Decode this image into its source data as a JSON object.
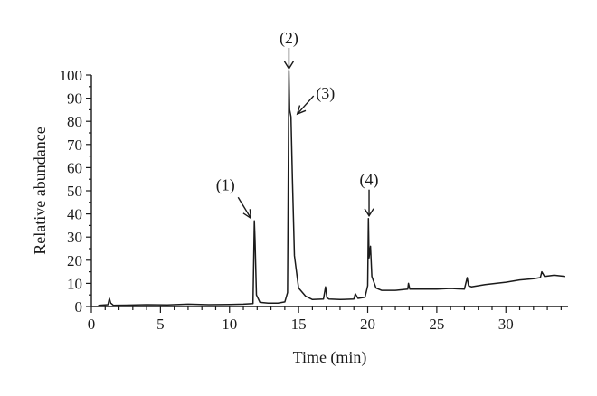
{
  "chart_data": {
    "type": "line",
    "title": "",
    "xlabel": "Time (min)",
    "ylabel": "Relative abundance",
    "xlim": [
      0,
      34.5
    ],
    "ylim": [
      0,
      100
    ],
    "xticks": [
      0,
      5,
      10,
      15,
      20,
      25,
      30
    ],
    "yticks": [
      0,
      10,
      20,
      30,
      40,
      50,
      60,
      70,
      80,
      90,
      100
    ],
    "grid": false,
    "line_color": "#1a1a1a",
    "series": [
      {
        "name": "",
        "x": [
          0.5,
          1.2,
          1.3,
          1.4,
          1.6,
          2.5,
          4.0,
          5.5,
          7.0,
          8.5,
          10.0,
          11.0,
          11.7,
          11.8,
          11.85,
          11.95,
          12.2,
          12.8,
          13.5,
          14.0,
          14.2,
          14.3,
          14.35,
          14.45,
          14.55,
          14.7,
          15.0,
          15.5,
          16.0,
          16.8,
          16.95,
          17.05,
          17.2,
          18.0,
          19.0,
          19.1,
          19.3,
          19.8,
          20.0,
          20.05,
          20.1,
          20.2,
          20.3,
          20.6,
          21.0,
          22.0,
          22.9,
          22.95,
          23.05,
          24.0,
          25.0,
          26.0,
          27.0,
          27.2,
          27.3,
          27.5,
          28.5,
          30.0,
          31.0,
          32.0,
          32.5,
          32.6,
          32.8,
          33.5,
          34.3
        ],
        "values": [
          0.5,
          0.8,
          3.5,
          1.5,
          0.5,
          0.6,
          0.8,
          0.7,
          1.0,
          0.8,
          0.9,
          1.0,
          1.3,
          37,
          28,
          5,
          1.8,
          1.5,
          1.5,
          2.0,
          6.0,
          102,
          85,
          82,
          55,
          22,
          8,
          4.5,
          3.0,
          3.2,
          8.5,
          3.8,
          3.2,
          3.0,
          3.2,
          5.5,
          3.5,
          4.0,
          9.0,
          38,
          21,
          26,
          13,
          8.0,
          7.0,
          7.0,
          7.5,
          10.0,
          7.5,
          7.5,
          7.5,
          7.8,
          7.5,
          12.5,
          9.0,
          8.5,
          9.5,
          10.5,
          11.5,
          12.0,
          12.5,
          15.0,
          13.0,
          13.5,
          13.0
        ]
      }
    ],
    "annotations": [
      {
        "label": "(1)",
        "x": 11.8,
        "y": 37
      },
      {
        "label": "(2)",
        "x": 14.3,
        "y": 102
      },
      {
        "label": "(3)",
        "x": 14.45,
        "y": 82
      },
      {
        "label": "(4)",
        "x": 20.1,
        "y": 38
      }
    ]
  }
}
